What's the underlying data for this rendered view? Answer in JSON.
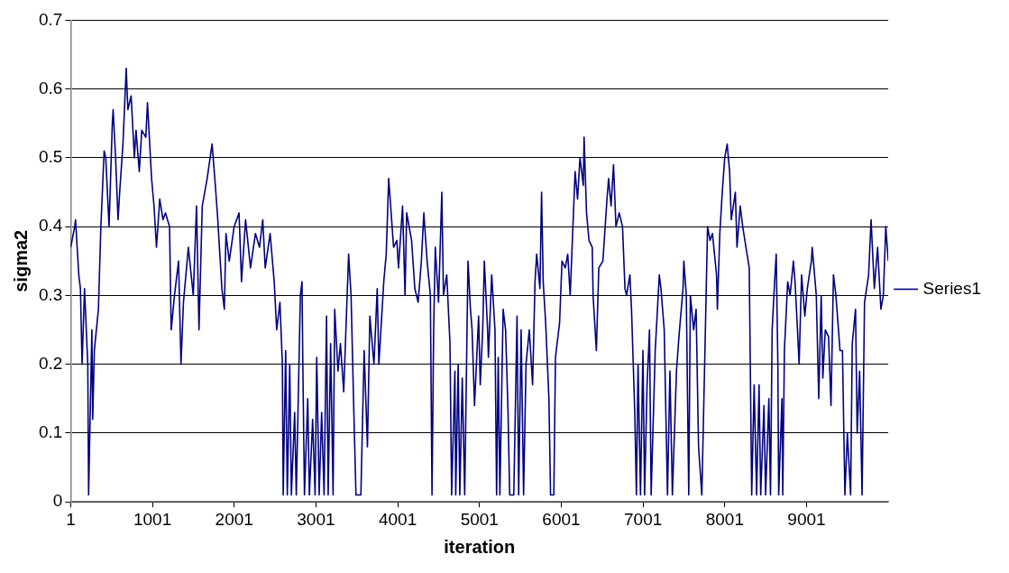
{
  "chart_data": {
    "type": "line",
    "xlabel": "iteration",
    "ylabel": "sigma2",
    "x": [
      1,
      50,
      60,
      100,
      120,
      140,
      170,
      210,
      220,
      260,
      270,
      290,
      340,
      370,
      410,
      430,
      470,
      510,
      520,
      550,
      580,
      600,
      640,
      680,
      700,
      740,
      780,
      800,
      840,
      870,
      920,
      940,
      990,
      1020,
      1050,
      1090,
      1130,
      1160,
      1210,
      1230,
      1270,
      1320,
      1350,
      1380,
      1440,
      1500,
      1540,
      1570,
      1610,
      1670,
      1730,
      1770,
      1800,
      1850,
      1880,
      1900,
      1940,
      2000,
      2060,
      2090,
      2140,
      2200,
      2260,
      2310,
      2350,
      2380,
      2440,
      2490,
      2520,
      2560,
      2590,
      2600,
      2630,
      2650,
      2680,
      2700,
      2740,
      2760,
      2810,
      2830,
      2840,
      2860,
      2900,
      2920,
      2960,
      2990,
      3010,
      3040,
      3070,
      3100,
      3130,
      3150,
      3180,
      3210,
      3230,
      3270,
      3300,
      3340,
      3400,
      3430,
      3460,
      3490,
      3550,
      3590,
      3630,
      3660,
      3710,
      3750,
      3770,
      3830,
      3860,
      3890,
      3920,
      3950,
      3990,
      4010,
      4060,
      4090,
      4110,
      4170,
      4210,
      4250,
      4290,
      4320,
      4360,
      4400,
      4420,
      4440,
      4460,
      4500,
      4540,
      4560,
      4600,
      4640,
      4660,
      4700,
      4710,
      4740,
      4760,
      4790,
      4820,
      4860,
      4890,
      4910,
      4940,
      4990,
      5010,
      5040,
      5060,
      5100,
      5110,
      5150,
      5190,
      5210,
      5230,
      5250,
      5290,
      5320,
      5350,
      5370,
      5420,
      5460,
      5480,
      5510,
      5540,
      5570,
      5610,
      5650,
      5680,
      5700,
      5740,
      5760,
      5780,
      5810,
      5850,
      5870,
      5910,
      5930,
      5980,
      6010,
      6050,
      6080,
      6110,
      6150,
      6170,
      6200,
      6230,
      6270,
      6280,
      6310,
      6340,
      6380,
      6390,
      6430,
      6460,
      6510,
      6560,
      6580,
      6610,
      6640,
      6670,
      6710,
      6750,
      6780,
      6800,
      6840,
      6860,
      6900,
      6920,
      6940,
      6970,
      7000,
      7020,
      7050,
      7080,
      7100,
      7150,
      7200,
      7220,
      7260,
      7280,
      7300,
      7330,
      7360,
      7410,
      7440,
      7490,
      7500,
      7530,
      7560,
      7580,
      7620,
      7650,
      7680,
      7720,
      7760,
      7790,
      7820,
      7850,
      7900,
      7910,
      7940,
      7970,
      8000,
      8030,
      8060,
      8080,
      8130,
      8150,
      8190,
      8220,
      8260,
      8300,
      8330,
      8360,
      8390,
      8420,
      8440,
      8480,
      8500,
      8540,
      8560,
      8580,
      8610,
      8630,
      8650,
      8660,
      8700,
      8710,
      8730,
      8770,
      8800,
      8840,
      8860,
      8890,
      8910,
      8940,
      8980,
      9010,
      9060,
      9070,
      9120,
      9150,
      9180,
      9200,
      9230,
      9270,
      9300,
      9330,
      9360,
      9410,
      9440,
      9470,
      9500,
      9540,
      9560,
      9600,
      9620,
      9650,
      9680,
      9710,
      9760,
      9790,
      9830,
      9870,
      9910,
      9940,
      9970,
      10000
    ],
    "series": [
      {
        "name": "Series1",
        "color": "#000080",
        "values": [
          0.37,
          0.4,
          0.41,
          0.33,
          0.31,
          0.2,
          0.31,
          0.2,
          0.01,
          0.25,
          0.12,
          0.22,
          0.28,
          0.4,
          0.51,
          0.5,
          0.4,
          0.55,
          0.57,
          0.5,
          0.41,
          0.45,
          0.52,
          0.63,
          0.57,
          0.59,
          0.5,
          0.54,
          0.48,
          0.54,
          0.53,
          0.58,
          0.47,
          0.43,
          0.37,
          0.44,
          0.41,
          0.42,
          0.4,
          0.25,
          0.3,
          0.35,
          0.2,
          0.29,
          0.37,
          0.3,
          0.43,
          0.25,
          0.43,
          0.47,
          0.52,
          0.46,
          0.41,
          0.31,
          0.28,
          0.39,
          0.35,
          0.4,
          0.42,
          0.32,
          0.41,
          0.34,
          0.39,
          0.37,
          0.41,
          0.34,
          0.39,
          0.32,
          0.25,
          0.29,
          0.2,
          0.01,
          0.22,
          0.01,
          0.2,
          0.01,
          0.13,
          0.01,
          0.3,
          0.32,
          0.2,
          0.01,
          0.15,
          0.01,
          0.12,
          0.01,
          0.21,
          0.01,
          0.13,
          0.01,
          0.27,
          0.01,
          0.23,
          0.01,
          0.28,
          0.19,
          0.23,
          0.16,
          0.36,
          0.3,
          0.15,
          0.01,
          0.01,
          0.22,
          0.08,
          0.27,
          0.2,
          0.31,
          0.2,
          0.32,
          0.36,
          0.47,
          0.42,
          0.37,
          0.38,
          0.34,
          0.43,
          0.3,
          0.42,
          0.38,
          0.31,
          0.29,
          0.35,
          0.42,
          0.35,
          0.3,
          0.01,
          0.25,
          0.37,
          0.29,
          0.45,
          0.3,
          0.33,
          0.23,
          0.01,
          0.19,
          0.01,
          0.2,
          0.01,
          0.18,
          0.01,
          0.35,
          0.28,
          0.25,
          0.14,
          0.27,
          0.17,
          0.25,
          0.35,
          0.25,
          0.21,
          0.33,
          0.25,
          0.01,
          0.21,
          0.01,
          0.28,
          0.25,
          0.13,
          0.01,
          0.01,
          0.27,
          0.01,
          0.25,
          0.01,
          0.2,
          0.25,
          0.17,
          0.32,
          0.36,
          0.31,
          0.45,
          0.32,
          0.26,
          0.15,
          0.01,
          0.01,
          0.21,
          0.26,
          0.35,
          0.34,
          0.36,
          0.3,
          0.42,
          0.48,
          0.44,
          0.5,
          0.46,
          0.53,
          0.42,
          0.38,
          0.37,
          0.3,
          0.22,
          0.34,
          0.35,
          0.44,
          0.47,
          0.43,
          0.49,
          0.4,
          0.42,
          0.4,
          0.31,
          0.3,
          0.33,
          0.28,
          0.13,
          0.01,
          0.2,
          0.01,
          0.22,
          0.01,
          0.17,
          0.25,
          0.01,
          0.22,
          0.33,
          0.31,
          0.25,
          0.13,
          0.01,
          0.19,
          0.01,
          0.19,
          0.24,
          0.31,
          0.35,
          0.3,
          0.01,
          0.3,
          0.25,
          0.28,
          0.08,
          0.01,
          0.23,
          0.4,
          0.38,
          0.39,
          0.33,
          0.28,
          0.39,
          0.45,
          0.5,
          0.52,
          0.48,
          0.41,
          0.45,
          0.37,
          0.43,
          0.4,
          0.37,
          0.34,
          0.01,
          0.17,
          0.01,
          0.17,
          0.01,
          0.14,
          0.01,
          0.15,
          0.01,
          0.25,
          0.32,
          0.36,
          0.2,
          0.01,
          0.15,
          0.01,
          0.22,
          0.32,
          0.3,
          0.35,
          0.32,
          0.25,
          0.2,
          0.33,
          0.27,
          0.31,
          0.35,
          0.37,
          0.3,
          0.15,
          0.3,
          0.18,
          0.25,
          0.24,
          0.14,
          0.33,
          0.3,
          0.22,
          0.22,
          0.01,
          0.1,
          0.01,
          0.23,
          0.28,
          0.1,
          0.19,
          0.01,
          0.29,
          0.33,
          0.41,
          0.31,
          0.37,
          0.28,
          0.3,
          0.4,
          0.35
        ]
      }
    ],
    "xlim": [
      1,
      10000
    ],
    "xticks": [
      1,
      1001,
      2001,
      3001,
      4001,
      5001,
      6001,
      7001,
      8001,
      9001
    ],
    "ylim": [
      0,
      0.7
    ],
    "yticks": [
      0,
      0.1,
      0.2,
      0.3,
      0.4,
      0.5,
      0.6,
      0.7
    ],
    "grid": "y",
    "legend": "right",
    "marker": "none",
    "line_style": "solid"
  }
}
